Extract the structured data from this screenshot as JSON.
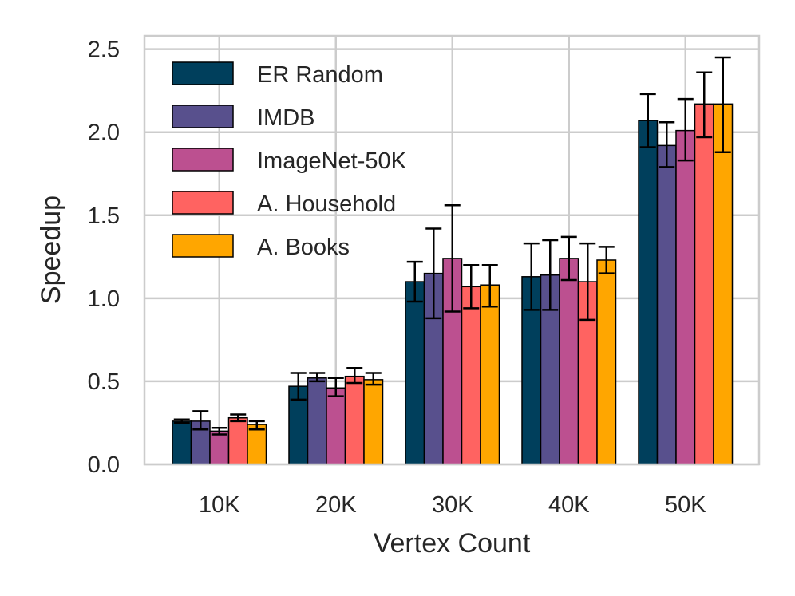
{
  "chart_data": {
    "type": "bar",
    "title": "",
    "xlabel": "Vertex Count",
    "ylabel": "Speedup",
    "categories": [
      "10K",
      "20K",
      "30K",
      "40K",
      "50K"
    ],
    "ylim": [
      0,
      2.58
    ],
    "yticks": [
      0.0,
      0.5,
      1.0,
      1.5,
      2.0,
      2.5
    ],
    "ytick_labels": [
      "0.0",
      "0.5",
      "1.0",
      "1.5",
      "2.0",
      "2.5"
    ],
    "grid": true,
    "legend_position": "top-left",
    "series": [
      {
        "name": "ER Random",
        "color": "#003f5c",
        "values": [
          0.26,
          0.47,
          1.1,
          1.13,
          2.07
        ],
        "errors": [
          [
            0.25,
            0.27
          ],
          [
            0.39,
            0.55
          ],
          [
            0.98,
            1.22
          ],
          [
            0.93,
            1.33
          ],
          [
            1.91,
            2.23
          ]
        ]
      },
      {
        "name": "IMDB",
        "color": "#58508d",
        "values": [
          0.26,
          0.52,
          1.15,
          1.14,
          1.92
        ],
        "errors": [
          [
            0.21,
            0.32
          ],
          [
            0.5,
            0.55
          ],
          [
            0.88,
            1.42
          ],
          [
            0.93,
            1.35
          ],
          [
            1.79,
            2.06
          ]
        ]
      },
      {
        "name": "ImageNet-50K",
        "color": "#bc5090",
        "values": [
          0.2,
          0.46,
          1.24,
          1.24,
          2.01
        ],
        "errors": [
          [
            0.18,
            0.22
          ],
          [
            0.41,
            0.52
          ],
          [
            0.92,
            1.56
          ],
          [
            1.11,
            1.37
          ],
          [
            1.83,
            2.2
          ]
        ]
      },
      {
        "name": "A. Household",
        "color": "#ff6361",
        "values": [
          0.28,
          0.53,
          1.07,
          1.1,
          2.17
        ],
        "errors": [
          [
            0.26,
            0.3
          ],
          [
            0.49,
            0.58
          ],
          [
            0.94,
            1.2
          ],
          [
            0.87,
            1.33
          ],
          [
            1.97,
            2.36
          ]
        ]
      },
      {
        "name": "A. Books",
        "color": "#ffa600",
        "values": [
          0.24,
          0.51,
          1.08,
          1.23,
          2.17
        ],
        "errors": [
          [
            0.21,
            0.26
          ],
          [
            0.48,
            0.55
          ],
          [
            0.95,
            1.2
          ],
          [
            1.15,
            1.31
          ],
          [
            1.88,
            2.45
          ]
        ]
      }
    ]
  }
}
